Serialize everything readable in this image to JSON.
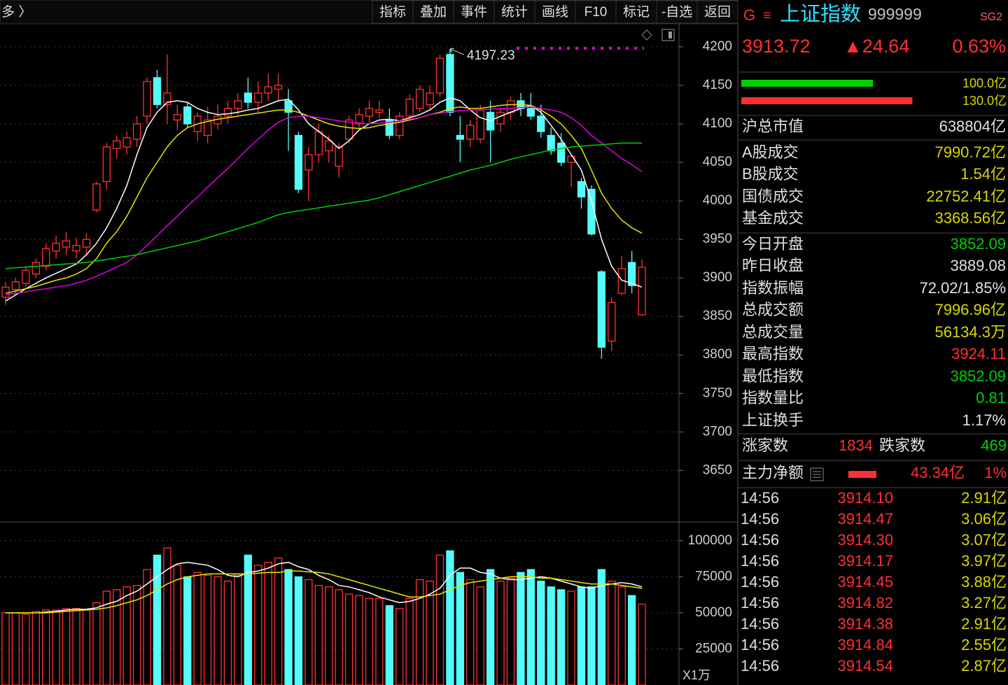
{
  "toolbar": {
    "left": "多 〉",
    "buttons": [
      "指标",
      "叠加",
      "事件",
      "统计",
      "画线",
      "F10",
      "标记",
      "-自选",
      "返回"
    ]
  },
  "chart_data": [
    {
      "type": "candlestick",
      "up_color": "#ff3232",
      "down_color": "#54fcfc",
      "grid": true,
      "ylim": [
        3584,
        4229
      ],
      "yticks": [
        4200,
        4150,
        4100,
        4050,
        4000,
        3950,
        3900,
        3850,
        3800,
        3750,
        3700,
        3650
      ],
      "open": [
        3875,
        3885,
        3893,
        3905,
        3915,
        3935,
        3940,
        3935,
        3940,
        3988,
        4025,
        4068,
        4070,
        4080,
        4110,
        4160,
        4125,
        4105,
        4122,
        4090,
        4085,
        4100,
        4110,
        4120,
        4140,
        4128,
        4140,
        4145,
        4130,
        4085,
        4040,
        4060,
        4065,
        4045,
        4080,
        4100,
        4110,
        4115,
        4105,
        4085,
        4110,
        4120,
        4125,
        4140,
        4190,
        4085,
        4080,
        4080,
        4115,
        4100,
        4115,
        4130,
        4120,
        4110,
        4085,
        4075,
        4050,
        4025,
        4015,
        3908,
        3818,
        3880,
        3920,
        3852.09
      ],
      "high": [
        3895,
        3900,
        3915,
        3925,
        3945,
        3955,
        3960,
        3952,
        3958,
        4025,
        4075,
        4085,
        4090,
        4110,
        4160,
        4170,
        4190,
        4125,
        4128,
        4115,
        4122,
        4125,
        4130,
        4140,
        4160,
        4155,
        4165,
        4165,
        4145,
        4090,
        4070,
        4100,
        4085,
        4075,
        4110,
        4120,
        4130,
        4130,
        4120,
        4115,
        4138,
        4150,
        4150,
        4190,
        4197.23,
        4110,
        4105,
        4125,
        4130,
        4120,
        4135,
        4140,
        4140,
        4125,
        4095,
        4088,
        4060,
        4030,
        4020,
        3910,
        3875,
        3928,
        3935,
        3924.11
      ],
      "low": [
        3865,
        3878,
        3888,
        3900,
        3910,
        3925,
        3930,
        3925,
        3930,
        3985,
        4015,
        4055,
        4060,
        4070,
        4100,
        4120,
        4100,
        4092,
        4095,
        4078,
        4075,
        4093,
        4100,
        4112,
        4120,
        4115,
        4130,
        4130,
        4065,
        4010,
        4000,
        4050,
        4050,
        4030,
        4075,
        4095,
        4100,
        4108,
        4080,
        4080,
        4105,
        4115,
        4118,
        4135,
        4110,
        4050,
        4070,
        4075,
        4050,
        4090,
        4105,
        4110,
        4105,
        4082,
        4060,
        4045,
        4018,
        3990,
        3955,
        3795,
        3805,
        3878,
        3880,
        3852.09
      ],
      "close": [
        3888,
        3895,
        3910,
        3920,
        3938,
        3945,
        3948,
        3942,
        3950,
        4022,
        4070,
        4078,
        4082,
        4100,
        4155,
        4125,
        4140,
        4112,
        4100,
        4110,
        4105,
        4110,
        4120,
        4130,
        4128,
        4140,
        4148,
        4150,
        4115,
        4015,
        4060,
        4090,
        4078,
        4070,
        4105,
        4112,
        4120,
        4118,
        4085,
        4110,
        4132,
        4145,
        4140,
        4185,
        4115,
        4080,
        4098,
        4118,
        4092,
        4115,
        4130,
        4120,
        4110,
        4090,
        4065,
        4050,
        4058,
        4005,
        3957,
        3810,
        3868,
        3912,
        3890,
        3913.72
      ],
      "series": [
        {
          "color": "#ffffff",
          "values": [
            3870,
            3878,
            3886,
            3893,
            3900,
            3906,
            3912,
            3918,
            3930,
            3945,
            3965,
            3990,
            4020,
            4060,
            4095,
            4115,
            4128,
            4130,
            4128,
            4120,
            4115,
            4112,
            4113,
            4115,
            4118,
            4120,
            4125,
            4130,
            4132,
            4118,
            4100,
            4090,
            4080,
            4068,
            4078,
            4092,
            4100,
            4105,
            4106,
            4104,
            4108,
            4112,
            4118,
            4128,
            4134,
            4130,
            4118,
            4108,
            4104,
            4110,
            4115,
            4120,
            4124,
            4115,
            4098,
            4080,
            4060,
            4040,
            4000,
            3950,
            3915,
            3897,
            3893,
            3888
          ]
        },
        {
          "color": "#e6e600",
          "values": [
            3880,
            3883,
            3886,
            3889,
            3893,
            3897,
            3900,
            3905,
            3912,
            3925,
            3945,
            3960,
            3980,
            4005,
            4030,
            4050,
            4070,
            4085,
            4095,
            4100,
            4103,
            4106,
            4108,
            4110,
            4112,
            4114,
            4116,
            4118,
            4118,
            4115,
            4110,
            4105,
            4100,
            4097,
            4095,
            4094,
            4095,
            4098,
            4100,
            4102,
            4105,
            4108,
            4112,
            4115,
            4120,
            4122,
            4120,
            4120,
            4122,
            4124,
            4125,
            4125,
            4124,
            4118,
            4110,
            4100,
            4085,
            4068,
            4040,
            4010,
            3990,
            3975,
            3965,
            3958
          ]
        },
        {
          "color": "#e000e0",
          "values": [
            3878,
            3880,
            3882,
            3884,
            3886,
            3888,
            3890,
            3893,
            3897,
            3902,
            3908,
            3914,
            3920,
            3930,
            3942,
            3955,
            3968,
            3980,
            3993,
            4005,
            4018,
            4030,
            4042,
            4055,
            4068,
            4080,
            4092,
            4102,
            4108,
            4110,
            4110,
            4108,
            4106,
            4104,
            4102,
            4101,
            4100,
            4101,
            4102,
            4104,
            4106,
            4108,
            4112,
            4114,
            4116,
            4117,
            4118,
            4118,
            4119,
            4120,
            4120,
            4121,
            4122,
            4120,
            4118,
            4115,
            4108,
            4098,
            4085,
            4075,
            4065,
            4055,
            4047,
            4038
          ]
        },
        {
          "color": "#00d000",
          "values": [
            3912,
            3913,
            3914,
            3915,
            3916,
            3917,
            3918,
            3919,
            3920,
            3922,
            3924,
            3926,
            3928,
            3930,
            3933,
            3936,
            3939,
            3942,
            3945,
            3948,
            3952,
            3956,
            3960,
            3964,
            3968,
            3972,
            3977,
            3982,
            3985,
            3987,
            3989,
            3991,
            3993,
            3995,
            3997,
            3999,
            4001,
            4004,
            4008,
            4012,
            4016,
            4020,
            4024,
            4028,
            4032,
            4036,
            4040,
            4043,
            4046,
            4050,
            4054,
            4057,
            4060,
            4063,
            4066,
            4068,
            4070,
            4071,
            4072,
            4073,
            4074,
            4075,
            4075,
            4075
          ]
        }
      ]
    },
    {
      "type": "bar",
      "up_color": "#ff3232",
      "down_color": "#54fcfc",
      "grid": true,
      "unit_label": "X1万",
      "ylim": [
        0,
        112000
      ],
      "yticks": [
        100000,
        75000,
        50000,
        25000
      ],
      "values": [
        50000,
        50000,
        49000,
        51000,
        52000,
        52000,
        53000,
        53000,
        52000,
        57000,
        65000,
        66000,
        68000,
        69000,
        80000,
        90000,
        95000,
        83000,
        75000,
        78000,
        76000,
        75000,
        72000,
        76000,
        90000,
        83000,
        85000,
        88000,
        80000,
        75000,
        73000,
        69000,
        68000,
        66000,
        63000,
        62000,
        60000,
        60000,
        55000,
        53000,
        60000,
        73000,
        72000,
        90000,
        93000,
        78000,
        73000,
        68000,
        80000,
        72000,
        74000,
        78000,
        80000,
        72000,
        68000,
        66000,
        65000,
        68000,
        68000,
        80000,
        72000,
        68000,
        62000,
        56000
      ],
      "series": [
        {
          "color": "#ffffff",
          "values": [
            50000,
            50000,
            50000,
            50000,
            50500,
            51000,
            52000,
            52500,
            52500,
            53500,
            56000,
            58000,
            62000,
            65000,
            70000,
            75000,
            80000,
            84000,
            85000,
            84000,
            83000,
            80000,
            76000,
            75000,
            78000,
            79000,
            81000,
            84000,
            85000,
            82000,
            80000,
            76000,
            73000,
            69000,
            68000,
            66000,
            64000,
            61000,
            59000,
            57000,
            58000,
            60000,
            63000,
            67000,
            76000,
            81000,
            81000,
            78000,
            77000,
            74000,
            73000,
            73000,
            74000,
            75000,
            74000,
            72000,
            70000,
            68000,
            67000,
            69000,
            70000,
            71000,
            70000,
            68000
          ]
        },
        {
          "color": "#e6e600",
          "values": [
            50000,
            50000,
            50000,
            50000,
            50000,
            50500,
            51000,
            51500,
            52000,
            52500,
            53500,
            55000,
            57000,
            59000,
            62000,
            66000,
            70000,
            73000,
            75000,
            76000,
            77000,
            77000,
            77000,
            77000,
            77000,
            77500,
            78000,
            78000,
            79000,
            79000,
            78500,
            78000,
            77000,
            75000,
            73000,
            71000,
            69000,
            67000,
            65000,
            63000,
            61000,
            61000,
            62000,
            63000,
            66000,
            69000,
            71000,
            72000,
            73000,
            74000,
            75000,
            75000,
            75000,
            74000,
            74000,
            73000,
            72000,
            71000,
            70000,
            70000,
            70000,
            69000,
            68000,
            67000
          ]
        }
      ]
    }
  ],
  "quote": {
    "mark": "G",
    "menu": "≡",
    "name": "上证指数",
    "code": "999999",
    "badge": "SG2",
    "price": "3913.72",
    "change": "▲24.64",
    "percent": "0.63%"
  },
  "strength": [
    {
      "value": 100.0,
      "label": "100.0亿",
      "color": "#00d000"
    },
    {
      "value": 130.0,
      "label": "130.0亿",
      "color": "#ff3030"
    }
  ],
  "stats": [
    {
      "label": "沪总市值",
      "value": "638804亿",
      "color": "#e0e0e0"
    },
    {
      "label": "A股成交",
      "value": "7990.72亿",
      "color": "#d8d800"
    },
    {
      "label": "B股成交",
      "value": "1.54亿",
      "color": "#d8d800"
    },
    {
      "label": "国债成交",
      "value": "22752.41亿",
      "color": "#d8d800"
    },
    {
      "label": "基金成交",
      "value": "3368.56亿",
      "color": "#d8d800"
    },
    {
      "label": "今日开盘",
      "value": "3852.09",
      "color": "#00d000"
    },
    {
      "label": "昨日收盘",
      "value": "3889.08",
      "color": "#e0e0e0"
    },
    {
      "label": "指数振幅",
      "value": "72.02/1.85%",
      "color": "#e0e0e0"
    },
    {
      "label": "总成交额",
      "value": "7996.96亿",
      "color": "#d8d800"
    },
    {
      "label": "总成交量",
      "value": "56134.3万",
      "color": "#d8d800"
    },
    {
      "label": "最高指数",
      "value": "3924.11",
      "color": "#ff3030"
    },
    {
      "label": "最低指数",
      "value": "3852.09",
      "color": "#00d000"
    },
    {
      "label": "指数量比",
      "value": "0.81",
      "color": "#00d000"
    },
    {
      "label": "上证换手",
      "value": "1.17%",
      "color": "#e0e0e0"
    }
  ],
  "breadth": {
    "up_label": "涨家数",
    "up": "1834",
    "down_label": "跌家数",
    "down": "469"
  },
  "flow": {
    "label": "主力净额",
    "value": "43.34亿",
    "percent": "1%"
  },
  "ticks": [
    [
      "14:56",
      "3914.10",
      "2.91亿"
    ],
    [
      "14:56",
      "3914.47",
      "3.06亿"
    ],
    [
      "14:56",
      "3914.30",
      "3.07亿"
    ],
    [
      "14:56",
      "3914.17",
      "3.97亿"
    ],
    [
      "14:56",
      "3914.45",
      "3.88亿"
    ],
    [
      "14:56",
      "3914.82",
      "3.27亿"
    ],
    [
      "14:56",
      "3914.38",
      "2.91亿"
    ],
    [
      "14:56",
      "3914.84",
      "2.55亿"
    ],
    [
      "14:56",
      "3914.54",
      "2.87亿"
    ]
  ]
}
